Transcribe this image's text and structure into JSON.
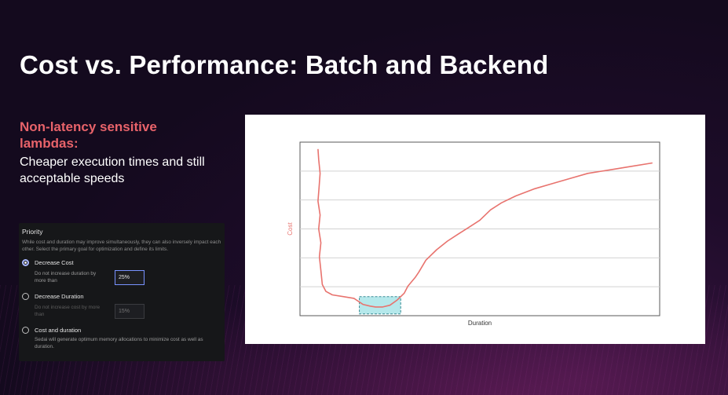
{
  "slide": {
    "title": "Cost vs. Performance: Batch and Backend",
    "subhead": "Non-latency sensitive lambdas:",
    "body": "Cheaper execution times and still acceptable speeds"
  },
  "settings_panel": {
    "title": "Priority",
    "description": "While cost and duration may improve simultaneously, they can also inversely impact each other. Select the primary goal for optimization and define its limits.",
    "options": [
      {
        "label": "Decrease Cost",
        "selected": true,
        "note": "Do not increase duration by more than",
        "input_value": "25%",
        "input_enabled": true
      },
      {
        "label": "Decrease Duration",
        "selected": false,
        "note": "Do not increase cost by more than",
        "input_placeholder": "15%",
        "input_enabled": false
      },
      {
        "label": "Cost and duration",
        "selected": false,
        "description": "Sedai will generate optimum memory allocations to minimize cost as well as duration."
      }
    ]
  },
  "chart_data": {
    "type": "line",
    "xlabel": "Duration",
    "ylabel": "Cost",
    "grid": true,
    "line_color": "#e8736e",
    "highlight_color": "#a8e4e8",
    "xlim": [
      0,
      100
    ],
    "ylim": [
      0,
      100
    ],
    "series": [
      {
        "x": [
          5,
          5.2,
          5.6,
          5.3,
          5.0,
          5.6,
          5.2,
          5.8,
          5.4,
          5.8,
          6.2,
          7.2,
          9,
          12,
          15,
          17.5,
          19.5,
          21,
          23,
          25,
          27,
          29,
          30,
          32,
          33,
          35,
          38,
          41,
          44,
          47,
          50,
          53,
          56,
          60,
          65,
          70,
          75,
          80,
          86,
          92,
          98
        ],
        "y": [
          96,
          90,
          82,
          74,
          66,
          58,
          50,
          42,
          34,
          26,
          18,
          14,
          12,
          11,
          10,
          6.5,
          5.5,
          5,
          5,
          6,
          9,
          13,
          17,
          22,
          25,
          32,
          38,
          43,
          47,
          51,
          55,
          61,
          65,
          69,
          73,
          76,
          79,
          82,
          84,
          86,
          88
        ]
      }
    ],
    "highlight_region": {
      "x": [
        16.5,
        28
      ],
      "y": [
        1,
        11
      ]
    }
  }
}
